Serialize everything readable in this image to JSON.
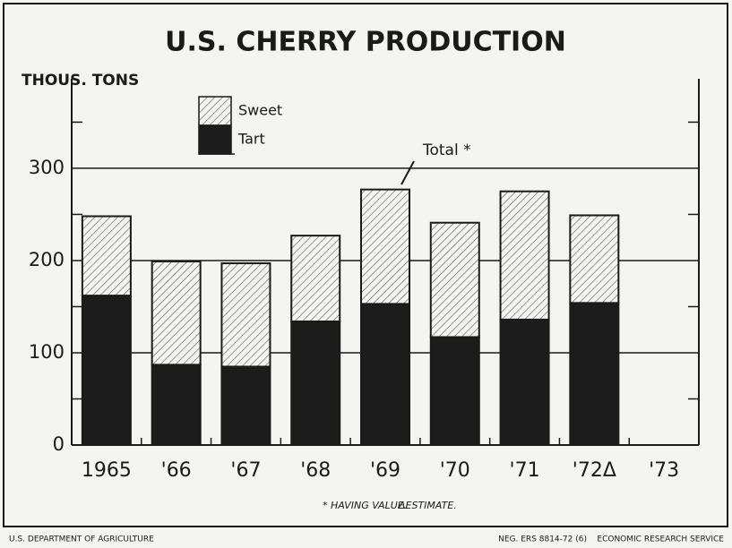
{
  "chart_data": {
    "type": "stacked_bar",
    "title": "U.S. CHERRY PRODUCTION",
    "y_label": "THOUS. TONS",
    "categories": [
      "1965",
      "'66",
      "'67",
      "'68",
      "'69",
      "'70",
      "'71",
      "'72Δ",
      "'73"
    ],
    "series": [
      {
        "name": "Tart",
        "color": "#1c1c1c",
        "values": [
          162,
          87,
          85,
          134,
          153,
          117,
          136,
          154,
          null
        ]
      },
      {
        "name": "Sweet",
        "color": "#444444",
        "pattern": "hatch",
        "values": [
          86,
          112,
          112,
          93,
          124,
          124,
          139,
          95,
          null
        ]
      }
    ],
    "ylim": [
      0,
      397
    ],
    "yticks": [
      0,
      100,
      200,
      300
    ],
    "minor_yticks": [
      50,
      150,
      250,
      350
    ],
    "grid": true,
    "annotations": [
      "Total *",
      "* HAVING VALUE.",
      "ΔESTIMATE."
    ],
    "footer_left": "U.S. DEPARTMENT OF AGRICULTURE",
    "footer_right": "NEG. ERS 8814-72 (6)    ECONOMIC RESEARCH SERVICE"
  }
}
